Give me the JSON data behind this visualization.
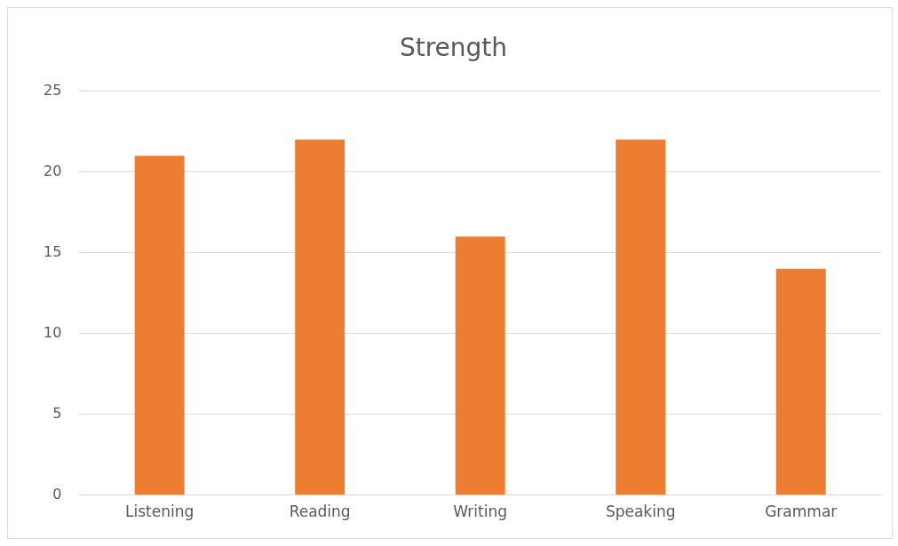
{
  "chart_data": {
    "type": "bar",
    "title": "Strength",
    "categories": [
      "Listening",
      "Reading",
      "Writing",
      "Speaking",
      "Grammar"
    ],
    "values": [
      21,
      22,
      16,
      22,
      14
    ],
    "color": "#ed7d31",
    "ylim": [
      0,
      25
    ],
    "yticks": [
      0,
      5,
      10,
      15,
      20,
      25
    ],
    "grid": "y",
    "legend": false
  }
}
